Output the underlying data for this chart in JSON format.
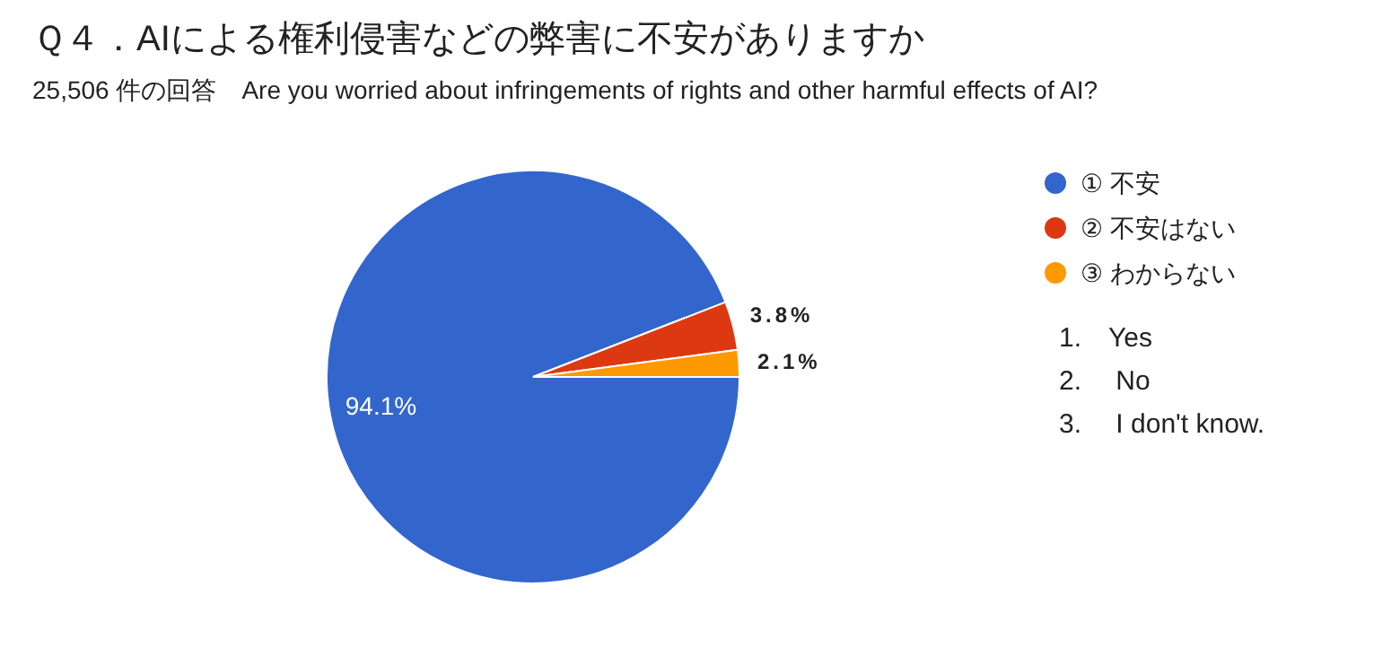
{
  "chart_data": {
    "type": "pie",
    "title": "Ｑ４．AIによる権利侵害などの弊害に不安がありますか",
    "subtitle": "25,506 件の回答　Are you worried about infringements of rights and other harmful effects of AI?",
    "categories": [
      "① 不安",
      "② 不安はない",
      "③ わからない"
    ],
    "values": [
      94.1,
      3.8,
      2.1
    ],
    "colors": [
      "#3366cc",
      "#dc3912",
      "#ff9900"
    ],
    "value_labels": [
      "94.1%",
      "3.8%",
      "2.1%"
    ],
    "legend": "right",
    "annotations": [
      "1.　Yes",
      "2.　 No",
      "3.　 I don't know."
    ]
  }
}
